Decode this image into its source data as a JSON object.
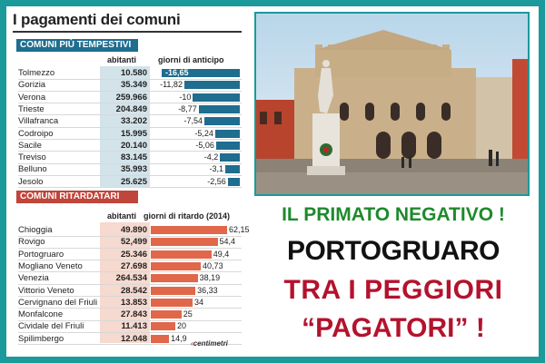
{
  "panel": {
    "title": "I pagamenti dei comuni",
    "credit": "centimetri"
  },
  "early": {
    "header": "COMUNI PIÙ TEMPESTIVI",
    "col_abitanti": "abitanti",
    "col_giorni": "giorni di anticipo",
    "bar_color": "#1f6d8f",
    "rows": [
      {
        "name": "Tolmezzo",
        "abitanti": "10.580",
        "giorni": "-16,65",
        "value": 16.65
      },
      {
        "name": "Gorizia",
        "abitanti": "35.349",
        "giorni": "-11,82",
        "value": 11.82
      },
      {
        "name": "Verona",
        "abitanti": "259.966",
        "giorni": "-10",
        "value": 10
      },
      {
        "name": "Trieste",
        "abitanti": "204.849",
        "giorni": "-8,77",
        "value": 8.77
      },
      {
        "name": "Villafranca",
        "abitanti": "33.202",
        "giorni": "-7,54",
        "value": 7.54
      },
      {
        "name": "Codroipo",
        "abitanti": "15.995",
        "giorni": "-5,24",
        "value": 5.24
      },
      {
        "name": "Sacile",
        "abitanti": "20.140",
        "giorni": "-5,06",
        "value": 5.06
      },
      {
        "name": "Treviso",
        "abitanti": "83.145",
        "giorni": "-4,2",
        "value": 4.2
      },
      {
        "name": "Belluno",
        "abitanti": "35.993",
        "giorni": "-3,1",
        "value": 3.1
      },
      {
        "name": "Jesolo",
        "abitanti": "25.625",
        "giorni": "-2,56",
        "value": 2.56
      }
    ]
  },
  "late": {
    "header": "COMUNI RITARDATARI",
    "col_abitanti": "abitanti",
    "col_giorni": "giorni di ritardo (2014)",
    "bar_color": "#e0674a",
    "rows": [
      {
        "name": "Chioggia",
        "abitanti": "49.890",
        "giorni": "62,15",
        "value": 62.15
      },
      {
        "name": "Rovigo",
        "abitanti": "52,499",
        "giorni": "54,4",
        "value": 54.4
      },
      {
        "name": "Portogruaro",
        "abitanti": "25.346",
        "giorni": "49,4",
        "value": 49.4
      },
      {
        "name": "Mogliano Veneto",
        "abitanti": "27.698",
        "giorni": "40,73",
        "value": 40.73
      },
      {
        "name": "Venezia",
        "abitanti": "264.534",
        "giorni": "38,19",
        "value": 38.19
      },
      {
        "name": "Vittorio Veneto",
        "abitanti": "28.542",
        "giorni": "36,33",
        "value": 36.33
      },
      {
        "name": "Cervignano del Friuli",
        "abitanti": "13.853",
        "giorni": "34",
        "value": 34
      },
      {
        "name": "Monfalcone",
        "abitanti": "27.843",
        "giorni": "25",
        "value": 25
      },
      {
        "name": "Cividale del Friuli",
        "abitanti": "11.413",
        "giorni": "20",
        "value": 20
      },
      {
        "name": "Spilimbergo",
        "abitanti": "12.048",
        "giorni": "14,9",
        "value": 14.9
      }
    ]
  },
  "headlines": {
    "line1": "IL PRIMATO NEGATIVO !",
    "line2": "PORTOGRUARO",
    "line3": "TRA I PEGGIORI",
    "line4": "“PAGATORI” !"
  },
  "colors": {
    "frame": "#1a9a9a",
    "line1": "#1e8a2c",
    "line2": "#111111",
    "line3": "#b4122d"
  }
}
